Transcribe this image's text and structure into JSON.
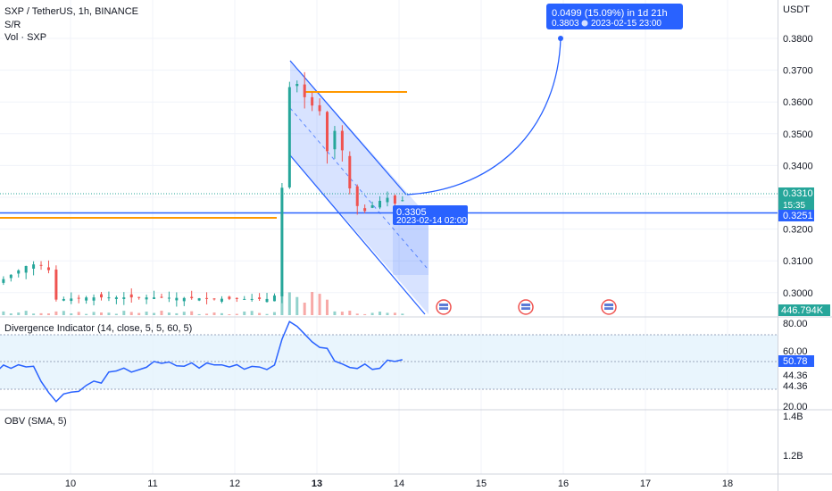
{
  "header": {
    "symbol": "SXP / TetherUS, 1h, BINANCE",
    "sr_label": "S/R",
    "vol_label": "Vol · SXP"
  },
  "panes": {
    "divergence_label": "Divergence Indicator (14, close, 5, 5, 60, 5)",
    "obv_label": "OBV (SMA, 5)"
  },
  "axis": {
    "unit": "USDT",
    "price_ticks": [
      "0.3800",
      "0.3700",
      "0.3600",
      "0.3500",
      "0.3400",
      "0.3200",
      "0.3100",
      "0.3000"
    ],
    "div_ticks": [
      "80.00",
      "60.00",
      "44.36",
      "44.36",
      "20.00"
    ],
    "obv_ticks": [
      "1.4B",
      "1.2B"
    ],
    "dates": [
      "10",
      "11",
      "12",
      "13",
      "14",
      "15",
      "16",
      "17",
      "18"
    ],
    "bold_date": "13"
  },
  "price_tags": {
    "last_price": "0.3310",
    "countdown": "15:35",
    "sr_level": "0.3251",
    "volume": "446.794K",
    "div_value": "50.78"
  },
  "annotations": {
    "target_main": "0.0499 (15.09%) in 1d 21h",
    "target_sub": "0.3803",
    "target_date": "2023-02-15  23:00",
    "start_price": "0.3305",
    "start_date": "2023-02-14 02:00"
  },
  "colors": {
    "up": "#26a69a",
    "down": "#ef5350",
    "accent": "#2962ff",
    "sr": "#ff9800",
    "channel_fill": "#c8d4f7",
    "last_price": "#26a69a"
  },
  "chart_data": {
    "type": "candlestick",
    "x_axis": "Feb 2023, day of month",
    "close_series": [
      [
        9.0,
        0.3015
      ],
      [
        9.3,
        0.306
      ],
      [
        9.5,
        0.309
      ],
      [
        9.72,
        0.3085
      ],
      [
        9.82,
        0.2978
      ],
      [
        10.2,
        0.2985
      ],
      [
        11.0,
        0.2985
      ],
      [
        12.0,
        0.298
      ],
      [
        12.48,
        0.298
      ],
      [
        12.56,
        0.324
      ],
      [
        12.62,
        0.36
      ],
      [
        12.7,
        0.368
      ],
      [
        12.8,
        0.364
      ],
      [
        12.92,
        0.358
      ],
      [
        13.02,
        0.362
      ],
      [
        13.08,
        0.34
      ],
      [
        13.2,
        0.352
      ],
      [
        13.32,
        0.344
      ],
      [
        13.42,
        0.33
      ],
      [
        13.55,
        0.325
      ],
      [
        13.7,
        0.328
      ],
      [
        13.85,
        0.33
      ],
      [
        14.0,
        0.327
      ],
      [
        14.08,
        0.331
      ]
    ],
    "sr_levels": [
      0.3251
    ],
    "volume_last": "446.794K",
    "divergence_indicator": {
      "values_by_day": [
        [
          9.0,
          44
        ],
        [
          9.5,
          49
        ],
        [
          9.82,
          22
        ],
        [
          10.5,
          42
        ],
        [
          11.0,
          49
        ],
        [
          12.48,
          48
        ],
        [
          12.62,
          79
        ],
        [
          13.0,
          65
        ],
        [
          13.35,
          46
        ],
        [
          14.08,
          50.78
        ]
      ],
      "levels": [
        80,
        60,
        44.36,
        20
      ]
    },
    "projection": {
      "from_price": 0.3305,
      "to_price": 0.3803,
      "change": "0.0499 (15.09%)"
    }
  }
}
